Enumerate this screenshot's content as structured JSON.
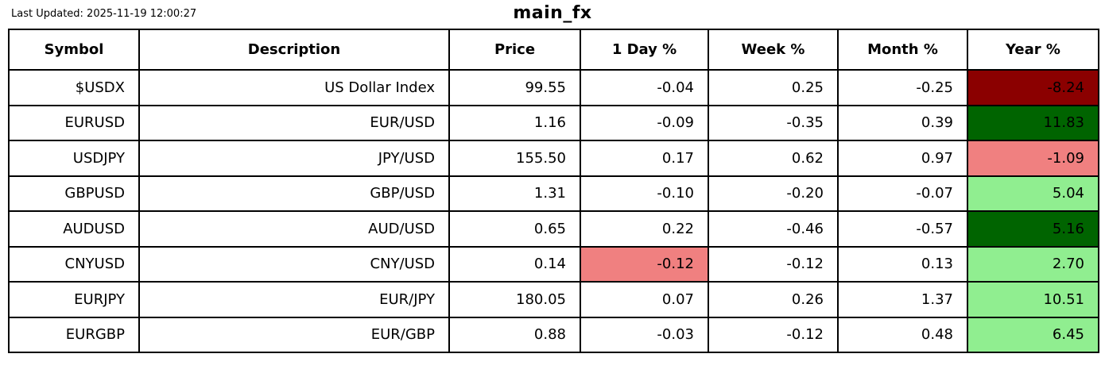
{
  "header": {
    "last_updated": "Last Updated: 2025-11-19 12:00:27",
    "title": "main_fx"
  },
  "chart_data": {
    "type": "table",
    "title": "main_fx",
    "last_updated": "Last Updated: 2025-11-19 12:00:27",
    "columns": [
      "Symbol",
      "Description",
      "Price",
      "1 Day %",
      "Week %",
      "Month %",
      "Year %"
    ],
    "rows": [
      {
        "symbol": "$USDX",
        "description": "US Dollar Index",
        "price": "99.55",
        "day": "-0.04",
        "week": "0.25",
        "month": "-0.25",
        "year": "-8.24",
        "day_bg": "",
        "year_bg": "#8B0000"
      },
      {
        "symbol": "EURUSD",
        "description": "EUR/USD",
        "price": "1.16",
        "day": "-0.09",
        "week": "-0.35",
        "month": "0.39",
        "year": "11.83",
        "day_bg": "",
        "year_bg": "#006400"
      },
      {
        "symbol": "USDJPY",
        "description": "JPY/USD",
        "price": "155.50",
        "day": "0.17",
        "week": "0.62",
        "month": "0.97",
        "year": "-1.09",
        "day_bg": "",
        "year_bg": "#F08080"
      },
      {
        "symbol": "GBPUSD",
        "description": "GBP/USD",
        "price": "1.31",
        "day": "-0.10",
        "week": "-0.20",
        "month": "-0.07",
        "year": "5.04",
        "day_bg": "",
        "year_bg": "#90EE90"
      },
      {
        "symbol": "AUDUSD",
        "description": "AUD/USD",
        "price": "0.65",
        "day": "0.22",
        "week": "-0.46",
        "month": "-0.57",
        "year": "5.16",
        "day_bg": "",
        "year_bg": "#006400"
      },
      {
        "symbol": "CNYUSD",
        "description": "CNY/USD",
        "price": "0.14",
        "day": "-0.12",
        "week": "-0.12",
        "month": "0.13",
        "year": "2.70",
        "day_bg": "#F08080",
        "year_bg": "#90EE90"
      },
      {
        "symbol": "EURJPY",
        "description": "EUR/JPY",
        "price": "180.05",
        "day": "0.07",
        "week": "0.26",
        "month": "1.37",
        "year": "10.51",
        "day_bg": "",
        "year_bg": "#90EE90"
      },
      {
        "symbol": "EURGBP",
        "description": "EUR/GBP",
        "price": "0.88",
        "day": "-0.03",
        "week": "-0.12",
        "month": "0.48",
        "year": "6.45",
        "day_bg": "",
        "year_bg": "#90EE90"
      }
    ],
    "palette": {
      "strong_negative": "#8B0000",
      "strong_positive": "#006400",
      "mild_negative": "#F08080",
      "mild_positive": "#90EE90",
      "grid_line": "#000000",
      "text": "#000000",
      "background": "#ffffff"
    },
    "layout": {
      "header_bold": true,
      "cell_align": "right",
      "header_align": "center",
      "grid": true
    }
  }
}
